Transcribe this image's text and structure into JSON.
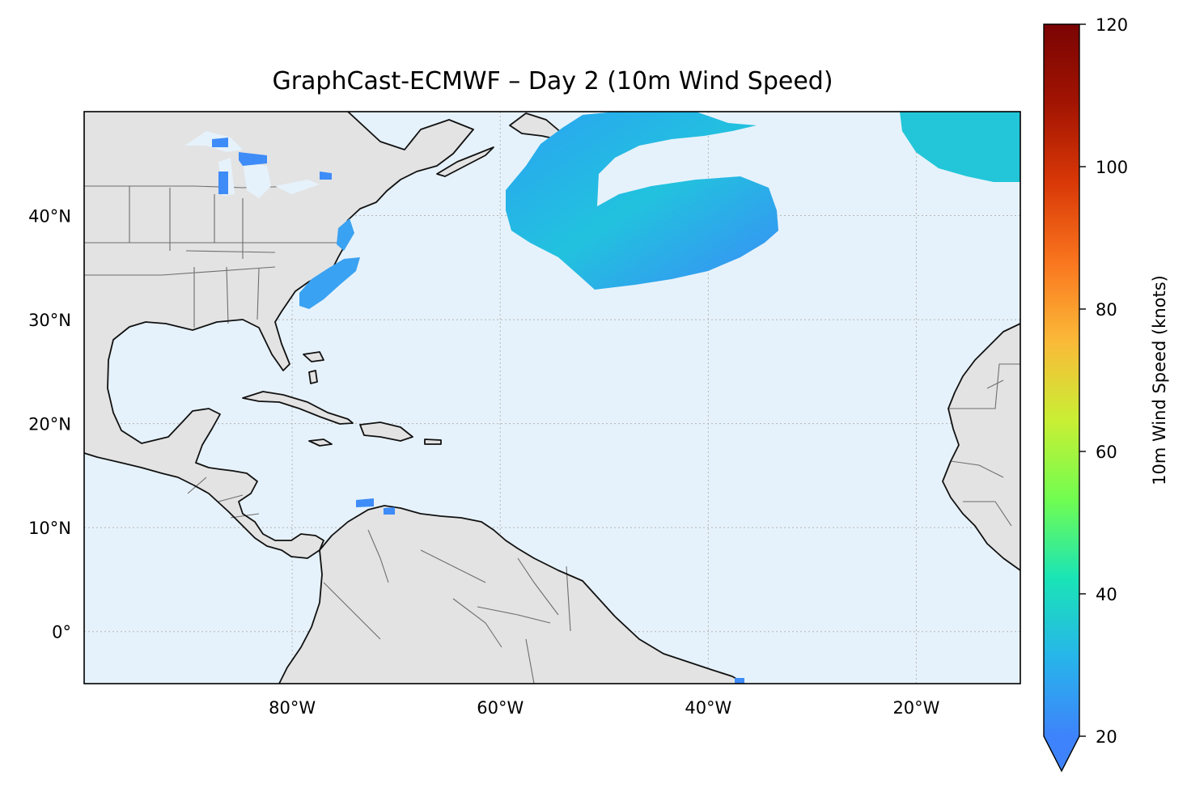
{
  "title": "GraphCast-ECMWF – Day 2 (10m Wind Speed)",
  "map": {
    "extent": {
      "lon_min": -100,
      "lon_max": -10,
      "lat_min": -5,
      "lat_max": 50
    },
    "ocean_color": "#e6f2fb",
    "land_color": "#e3e3e3",
    "coastline_color": "#111111",
    "border_color": "#6e6e6e",
    "gridline_color": "#b5b5b5",
    "lon_ticks": [
      {
        "value": -80,
        "label": "80°W"
      },
      {
        "value": -60,
        "label": "60°W"
      },
      {
        "value": -40,
        "label": "40°W"
      },
      {
        "value": -20,
        "label": "20°W"
      }
    ],
    "lat_ticks": [
      {
        "value": 40,
        "label": "40°N"
      },
      {
        "value": 30,
        "label": "30°N"
      },
      {
        "value": 20,
        "label": "20°N"
      },
      {
        "value": 10,
        "label": "10°N"
      },
      {
        "value": 0,
        "label": "0°"
      }
    ]
  },
  "colorbar": {
    "label": "10m Wind Speed (knots)",
    "min": 20,
    "max": 120,
    "extend": "min",
    "ticks": [
      {
        "value": 20,
        "label": "20"
      },
      {
        "value": 40,
        "label": "40"
      },
      {
        "value": 60,
        "label": "60"
      },
      {
        "value": 80,
        "label": "80"
      },
      {
        "value": 100,
        "label": "100"
      },
      {
        "value": 120,
        "label": "120"
      }
    ],
    "colormap": [
      "#3e83fb",
      "#27b5ea",
      "#1ae4b6",
      "#71fd50",
      "#c9ef34",
      "#fbb938",
      "#f9751e",
      "#d93807",
      "#a21402",
      "#7a0403"
    ]
  },
  "wind_regions": [
    {
      "name": "north-atlantic-swirl",
      "approx_speed_knots": 24
    },
    {
      "name": "northeast-corner",
      "approx_speed_knots": 30
    },
    {
      "name": "us-east-coast-band",
      "approx_speed_knots": 22
    },
    {
      "name": "great-lakes-patches",
      "approx_speed_knots": 21
    },
    {
      "name": "caribbean-coast-patch",
      "approx_speed_knots": 21
    }
  ]
}
